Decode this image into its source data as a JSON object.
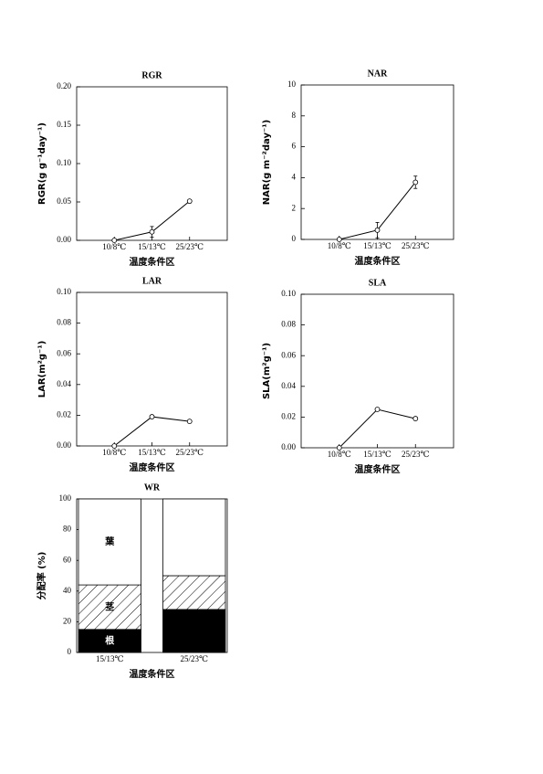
{
  "chart_data": [
    {
      "type": "line",
      "title": "RGR",
      "y_label": "RGR(g g⁻¹day⁻¹)",
      "x_label": "温度条件区",
      "categories": [
        "10/8℃",
        "15/13℃",
        "25/23℃"
      ],
      "values": [
        0,
        0.011,
        0.051
      ],
      "errors": [
        null,
        0.007,
        0.002
      ],
      "color": "#000000",
      "ylim": [
        0,
        0.2
      ],
      "yticks": [
        {
          "value": 0,
          "label": "0.00"
        },
        {
          "value": 0.05,
          "label": "0.05"
        },
        {
          "value": 0.1,
          "label": "0.10"
        },
        {
          "value": 0.15,
          "label": "0.15"
        },
        {
          "value": 0.2,
          "label": "0.20"
        }
      ]
    },
    {
      "type": "line",
      "title": "NAR",
      "y_label": "NAR(g m⁻²day⁻¹)",
      "x_label": "温度条件区",
      "categories": [
        "10/8℃",
        "15/13℃",
        "25/23℃"
      ],
      "values": [
        0,
        0.6,
        3.7
      ],
      "errors": [
        null,
        0.5,
        0.4
      ],
      "color": "#000000",
      "ylim": [
        0,
        10
      ],
      "yticks": [
        0,
        2,
        4,
        6,
        8,
        10
      ]
    },
    {
      "type": "line",
      "title": "LAR",
      "y_label": "LAR(m²g⁻¹)",
      "x_label": "温度条件区",
      "categories": [
        "10/8℃",
        "15/13℃",
        "25/23℃"
      ],
      "values": [
        0,
        0.019,
        0.016
      ],
      "errors": [
        null,
        0.001,
        0.001
      ],
      "color": "#000000",
      "ylim": [
        0,
        0.1
      ],
      "yticks": [
        {
          "value": 0,
          "label": "0.00"
        },
        {
          "value": 0.02,
          "label": "0.02"
        },
        {
          "value": 0.04,
          "label": "0.04"
        },
        {
          "value": 0.06,
          "label": "0.06"
        },
        {
          "value": 0.08,
          "label": "0.08"
        },
        {
          "value": 0.1,
          "label": "0.10"
        }
      ]
    },
    {
      "type": "line",
      "title": "SLA",
      "y_label": "SLA(m²g⁻¹)",
      "x_label": "温度条件区",
      "categories": [
        "10/8℃",
        "15/13℃",
        "25/23℃"
      ],
      "values": [
        0,
        0.025,
        0.019
      ],
      "errors": [
        null,
        0.001,
        0.001
      ],
      "color": "#000000",
      "ylim": [
        0,
        0.1
      ],
      "yticks": [
        {
          "value": 0,
          "label": "0.00"
        },
        {
          "value": 0.02,
          "label": "0.02"
        },
        {
          "value": 0.04,
          "label": "0.04"
        },
        {
          "value": 0.06,
          "label": "0.06"
        },
        {
          "value": 0.08,
          "label": "0.08"
        },
        {
          "value": 0.1,
          "label": "0.10"
        }
      ]
    },
    {
      "type": "stacked_bar",
      "title": "WR",
      "y_label": "分配率 (%)",
      "x_label": "温度条件区",
      "categories": [
        "15/13℃",
        "25/23℃"
      ],
      "series": [
        {
          "name": "根",
          "color": "#000000",
          "values": [
            15,
            28
          ]
        },
        {
          "name": "茎",
          "color": "#000000",
          "pattern": "hatch",
          "values": [
            29,
            22
          ]
        },
        {
          "name": "葉",
          "color": "#ffffff",
          "values": [
            56,
            50
          ]
        }
      ],
      "ylim": [
        0,
        100
      ],
      "yticks": [
        0,
        20,
        40,
        60,
        80,
        100
      ]
    }
  ]
}
